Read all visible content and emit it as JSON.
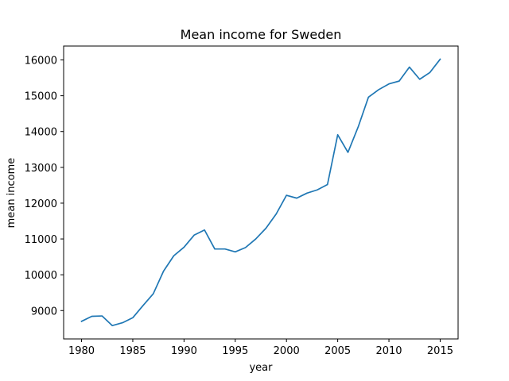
{
  "chart_data": {
    "type": "line",
    "title": "Mean income for Sweden",
    "xlabel": "year",
    "ylabel": "mean income",
    "xlim": [
      1978.25,
      2016.75
    ],
    "ylim": [
      8208,
      16388
    ],
    "xticks": [
      1980,
      1985,
      1990,
      1995,
      2000,
      2005,
      2010,
      2015
    ],
    "yticks": [
      9000,
      10000,
      11000,
      12000,
      13000,
      14000,
      15000,
      16000
    ],
    "grid": false,
    "line_color": "#1f77b4",
    "series": [
      {
        "x": [
          1980,
          1981,
          1982,
          1983,
          1984,
          1985,
          1986,
          1987,
          1988,
          1989,
          1990,
          1991,
          1992,
          1993,
          1994,
          1995,
          1996,
          1997,
          1998,
          1999,
          2000,
          2001,
          2002,
          2003,
          2004,
          2005,
          2006,
          2007,
          2008,
          2009,
          2010,
          2011,
          2012,
          2013,
          2014,
          2015
        ],
        "y": [
          8700,
          8840,
          8850,
          8580,
          8660,
          8800,
          9140,
          9470,
          10100,
          10530,
          10770,
          11110,
          11250,
          10720,
          10720,
          10640,
          10760,
          11000,
          11300,
          11700,
          12220,
          12140,
          12280,
          12370,
          12520,
          13910,
          13420,
          14130,
          14960,
          15170,
          15330,
          15410,
          15800,
          15460,
          15650,
          16020
        ]
      }
    ]
  }
}
